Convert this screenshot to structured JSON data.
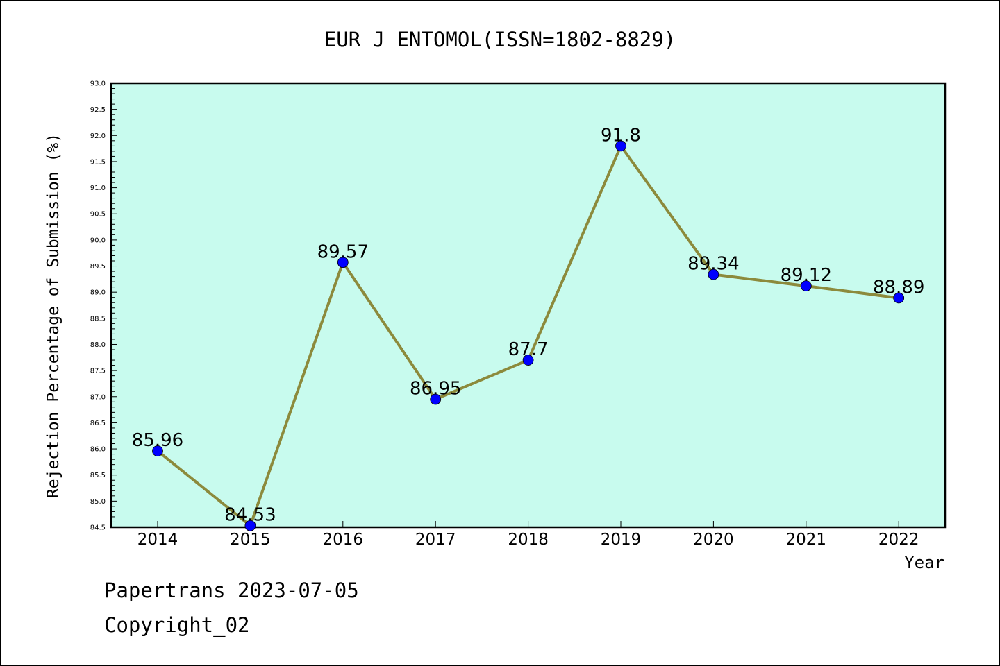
{
  "chart_data": {
    "type": "line",
    "title": "EUR J ENTOMOL(ISSN=1802-8829)",
    "xlabel": "Year",
    "ylabel": "Rejection Percentage of Submission (%)",
    "categories": [
      "2014",
      "2015",
      "2016",
      "2017",
      "2018",
      "2019",
      "2020",
      "2021",
      "2022"
    ],
    "series": [
      {
        "values": [
          85.96,
          84.53,
          89.57,
          86.95,
          87.7,
          91.8,
          89.34,
          89.12,
          88.89
        ],
        "labels": [
          "85.96",
          "84.53",
          "89.57",
          "86.95",
          "87.7",
          "91.8",
          "89.34",
          "89.12",
          "88.89"
        ]
      }
    ],
    "ylim": [
      84.5,
      93.0
    ],
    "yticks": [
      "84.5",
      "85.0",
      "85.5",
      "86.0",
      "86.5",
      "87.0",
      "87.5",
      "88.0",
      "88.5",
      "89.0",
      "89.5",
      "90.0",
      "90.5",
      "91.0",
      "91.5",
      "92.0",
      "92.5",
      "93.0"
    ],
    "grid": false,
    "colors": {
      "plot_background": "#c8fbee",
      "line": "#8c8a3c",
      "marker": "#0000ff"
    }
  },
  "footer": {
    "line1": "Papertrans 2023-07-05",
    "line2": "Copyright_02"
  }
}
